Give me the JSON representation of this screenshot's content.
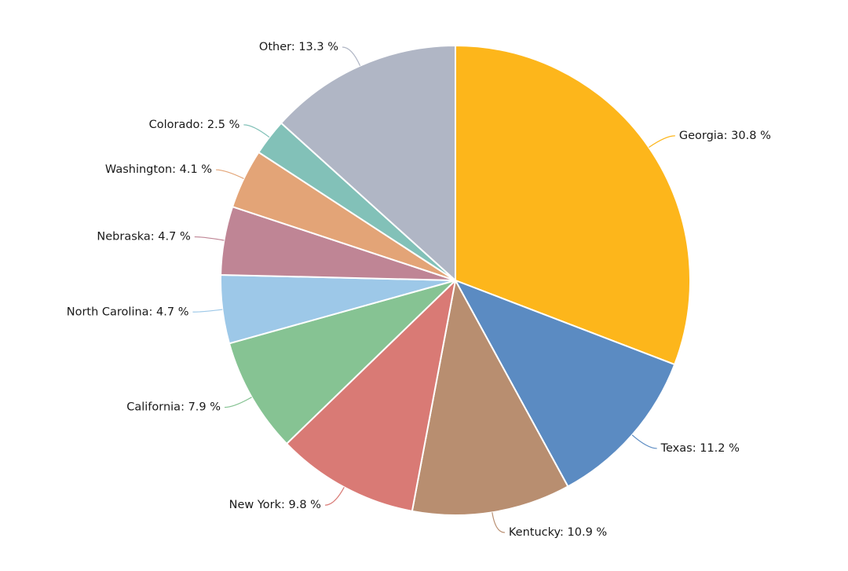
{
  "chart_data": {
    "type": "pie",
    "unit": "%",
    "slices": [
      {
        "label": "Georgia",
        "value": 30.8,
        "color": "#FDB61B",
        "display": "Georgia: 30.8 %"
      },
      {
        "label": "Texas",
        "value": 11.2,
        "color": "#5B8BC2",
        "display": "Texas: 11.2 %"
      },
      {
        "label": "Kentucky",
        "value": 10.9,
        "color": "#B88E70",
        "display": "Kentucky: 10.9 %"
      },
      {
        "label": "New York",
        "value": 9.8,
        "color": "#D97A75",
        "display": "New York: 9.8 %"
      },
      {
        "label": "California",
        "value": 7.9,
        "color": "#86C393",
        "display": "California: 7.9 %"
      },
      {
        "label": "North Carolina",
        "value": 4.7,
        "color": "#9DC8E8",
        "display": "North Carolina: 4.7 %"
      },
      {
        "label": "Nebraska",
        "value": 4.7,
        "color": "#BF8595",
        "display": "Nebraska: 4.7 %"
      },
      {
        "label": "Washington",
        "value": 4.1,
        "color": "#E3A477",
        "display": "Washington: 4.1 %"
      },
      {
        "label": "Colorado",
        "value": 2.5,
        "color": "#82C1B8",
        "display": "Colorado: 2.5 %"
      },
      {
        "label": "Other",
        "value": 13.3,
        "color": "#B0B6C5",
        "display": "Other: 13.3 %"
      }
    ],
    "start_angle": "12 o'clock",
    "direction": "clockwise",
    "legend": "none",
    "labels": "outside with leader lines"
  }
}
